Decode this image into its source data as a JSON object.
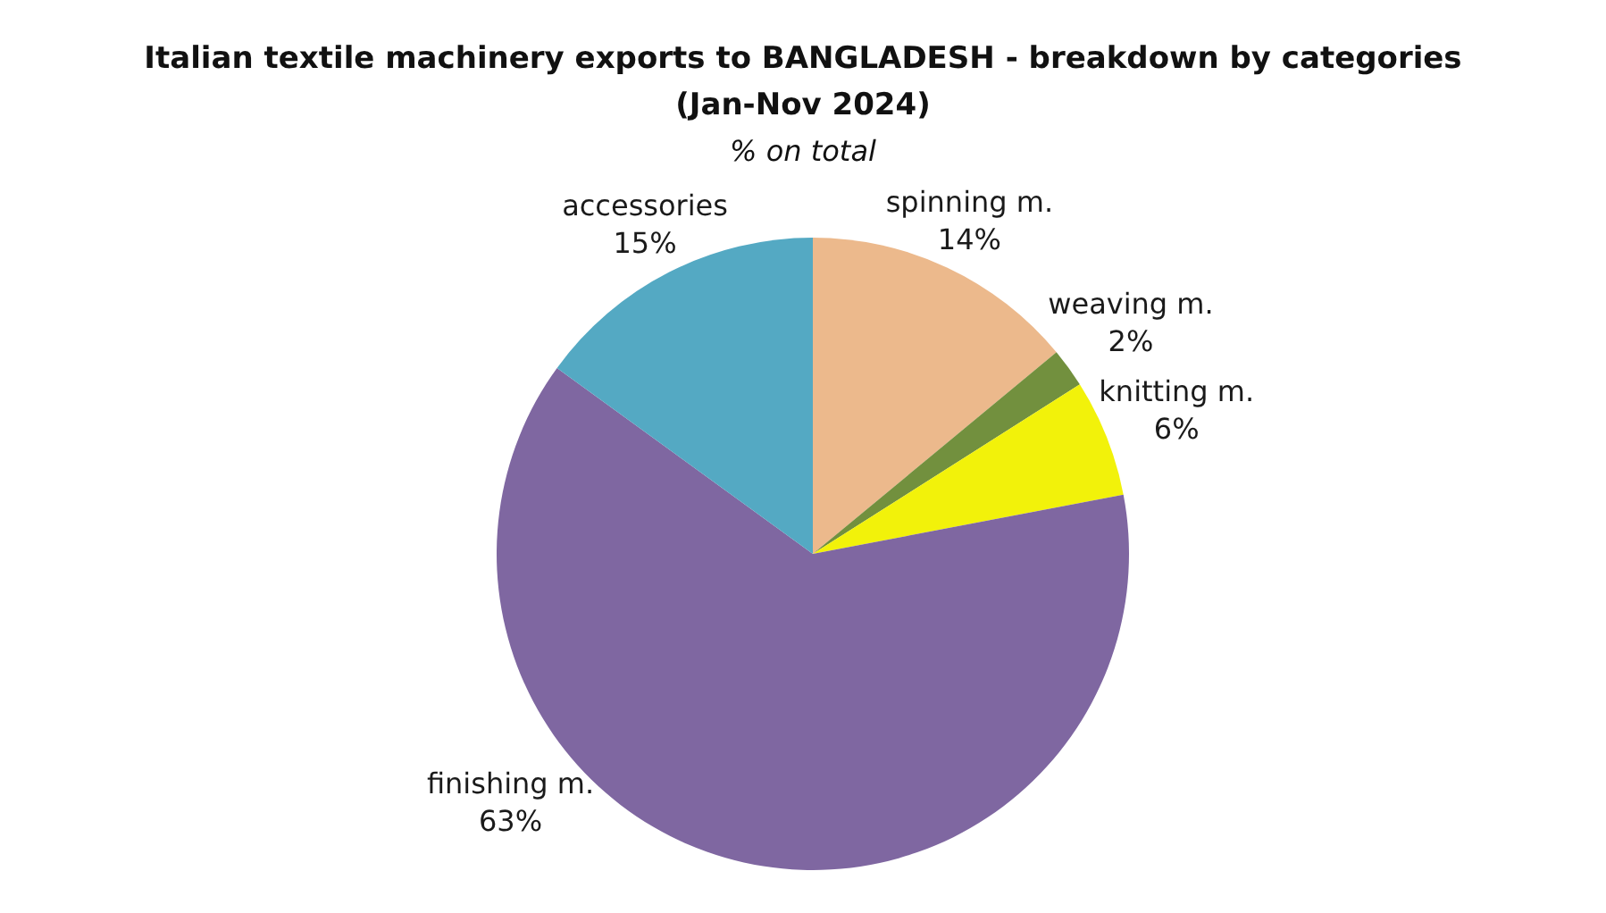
{
  "chart_data": {
    "type": "pie",
    "title": "Italian textile machinery exports to BANGLADESH - breakdown by categories (Jan-Nov 2024)",
    "subtitle": "% on total",
    "categories": [
      "spinning m.",
      "weaving m.",
      "knitting m.",
      "finishing m.",
      "accessories"
    ],
    "values": [
      14,
      2,
      6,
      63,
      15
    ],
    "colors": [
      "#ecb98c",
      "#72903e",
      "#f2f20a",
      "#7f67a1",
      "#54a9c3"
    ],
    "value_labels": [
      "14%",
      "2%",
      "6%",
      "63%",
      "15%"
    ]
  }
}
